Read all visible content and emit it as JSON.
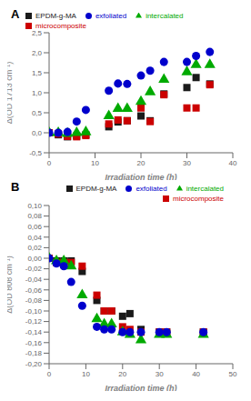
{
  "chart_data": [
    {
      "type": "scatter",
      "annotations": [
        "A"
      ],
      "xlabel": "Irradiation time (h)",
      "ylabel": "Δ(OD 1713 cm⁻¹)",
      "xlim": [
        0,
        40
      ],
      "ylim": [
        -0.5,
        2.5
      ],
      "xticks": [
        0,
        10,
        20,
        30,
        40
      ],
      "yticks": [
        {
          "value": -0.5,
          "label": "-0,5"
        },
        {
          "value": 0.0,
          "label": "0,0"
        },
        {
          "value": 0.5,
          "label": "0,5"
        },
        {
          "value": 1.0,
          "label": "1,0"
        },
        {
          "value": 1.5,
          "label": "1,5"
        },
        {
          "value": 2.0,
          "label": "2,0"
        },
        {
          "value": 2.5,
          "label": "2,5"
        }
      ],
      "legend": "upper left",
      "x": [
        0,
        2,
        4,
        6,
        8,
        13,
        15,
        17,
        20,
        22,
        25,
        30,
        32,
        35
      ],
      "series": [
        {
          "name": "EPDM-g-MA",
          "color": "#1a1a1a",
          "marker": "square",
          "values": [
            0.0,
            -0.05,
            -0.1,
            -0.08,
            -0.05,
            0.15,
            0.27,
            0.3,
            0.42,
            0.3,
            0.97,
            1.13,
            1.38,
            1.22
          ]
        },
        {
          "name": "microcomposite",
          "color": "#cc0000",
          "marker": "square",
          "values": [
            0.0,
            -0.03,
            -0.09,
            -0.1,
            -0.07,
            0.22,
            0.32,
            0.3,
            0.62,
            0.28,
            0.95,
            0.62,
            0.62,
            1.2
          ]
        },
        {
          "name": "intercalated",
          "color": "#00aa00",
          "marker": "triangle",
          "values": [
            0.0,
            0.0,
            -0.02,
            0.0,
            0.02,
            0.42,
            0.6,
            0.6,
            0.78,
            1.02,
            1.33,
            1.52,
            1.7,
            1.7
          ]
        },
        {
          "name": "exfoliated",
          "color": "#0000cc",
          "marker": "circle",
          "values": [
            0.0,
            0.0,
            0.02,
            0.28,
            0.57,
            1.05,
            1.23,
            1.22,
            1.43,
            1.55,
            1.77,
            1.77,
            1.92,
            2.02
          ]
        }
      ]
    },
    {
      "type": "scatter",
      "annotations": [
        "B"
      ],
      "xlabel": "Irradiation time (h)",
      "ylabel": "Δ(OD 808 cm⁻¹)",
      "xlim": [
        0,
        50
      ],
      "ylim": [
        -0.2,
        0.1
      ],
      "xticks": [
        0,
        10,
        20,
        30,
        40,
        50
      ],
      "yticks": [
        {
          "value": -0.2,
          "label": "-0,20"
        },
        {
          "value": -0.18,
          "label": "-0,18"
        },
        {
          "value": -0.16,
          "label": "-0,16"
        },
        {
          "value": -0.14,
          "label": "-0,14"
        },
        {
          "value": -0.12,
          "label": "-0,12"
        },
        {
          "value": -0.1,
          "label": "-0,10"
        },
        {
          "value": -0.08,
          "label": "-0,08"
        },
        {
          "value": -0.06,
          "label": "-0,06"
        },
        {
          "value": -0.04,
          "label": "-0,04"
        },
        {
          "value": -0.02,
          "label": "-0,02"
        },
        {
          "value": 0.0,
          "label": "0,00"
        },
        {
          "value": 0.02,
          "label": "0,02"
        },
        {
          "value": 0.04,
          "label": "0,04"
        },
        {
          "value": 0.06,
          "label": "0,06"
        },
        {
          "value": 0.08,
          "label": "0,08"
        },
        {
          "value": 0.1,
          "label": "0,10"
        }
      ],
      "legend": "upper right",
      "x": [
        0,
        2,
        4,
        6,
        9,
        13,
        15,
        17,
        20,
        22,
        25,
        30,
        32,
        42
      ],
      "series": [
        {
          "name": "EPDM-g-MA",
          "color": "#1a1a1a",
          "marker": "square",
          "values": [
            0.0,
            -0.005,
            -0.005,
            -0.005,
            -0.025,
            -0.08,
            -0.1,
            -0.1,
            -0.11,
            -0.105,
            -0.135,
            -0.14,
            -0.14,
            -0.14
          ]
        },
        {
          "name": "microcomposite",
          "color": "#cc0000",
          "marker": "square",
          "values": [
            0.0,
            -0.008,
            -0.008,
            -0.008,
            -0.015,
            -0.07,
            -0.1,
            -0.1,
            -0.13,
            -0.135,
            -0.14,
            -0.14,
            -0.14,
            -0.14
          ]
        },
        {
          "name": "intercalated",
          "color": "#00aa00",
          "marker": "triangle",
          "values": [
            0.0,
            -0.005,
            -0.005,
            -0.015,
            -0.07,
            -0.115,
            -0.125,
            -0.125,
            -0.14,
            -0.145,
            -0.155,
            -0.145,
            -0.145,
            -0.145
          ]
        },
        {
          "name": "exfoliated",
          "color": "#0000cc",
          "marker": "circle",
          "values": [
            0.0,
            -0.01,
            -0.015,
            -0.045,
            -0.09,
            -0.13,
            -0.135,
            -0.135,
            -0.14,
            -0.14,
            -0.14,
            -0.14,
            -0.14,
            -0.14
          ]
        }
      ]
    }
  ]
}
